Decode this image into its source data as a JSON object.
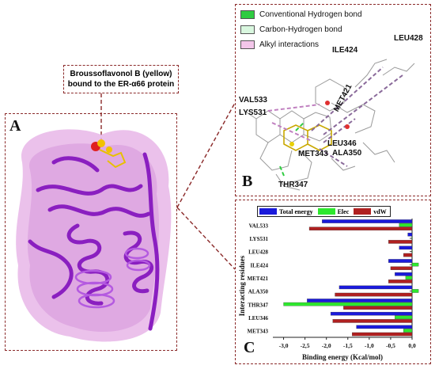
{
  "callout": {
    "line1": "Broussoflavonol B (yellow)",
    "line2": "bound to the ER-α66 protein"
  },
  "panels": {
    "a": "A",
    "b": "B",
    "c": "C"
  },
  "panel_b": {
    "legend": [
      {
        "label": "Conventional Hydrogen bond",
        "color": "#2ecc40"
      },
      {
        "label": "Carbon-Hydrogen bond",
        "color": "#d9f7df"
      },
      {
        "label": "Alkyl interactions",
        "color": "#f3c6ea"
      }
    ],
    "residues": [
      "LEU428",
      "ILE424",
      "VAL533",
      "MET421",
      "LYS531",
      "LEU346",
      "ALA350",
      "MET343",
      "THR347"
    ]
  },
  "chart_data": {
    "type": "bar",
    "orientation": "horizontal",
    "categories": [
      "VAL533",
      "LYS531",
      "LEU428",
      "ILE424",
      "MET421",
      "ALA350",
      "THR347",
      "LEU346",
      "MET343"
    ],
    "series": [
      {
        "name": "Total energy",
        "color": "#1a1adb",
        "values": [
          -2.1,
          -0.1,
          -0.3,
          -0.55,
          -0.4,
          -1.7,
          -2.45,
          -1.9,
          -1.3
        ]
      },
      {
        "name": "Elec",
        "color": "#2ee82e",
        "values": [
          -0.3,
          0.0,
          0.0,
          0.15,
          -0.15,
          0.15,
          -3.0,
          -0.4,
          -0.2
        ]
      },
      {
        "name": "vdW",
        "color": "#b02020",
        "values": [
          -2.4,
          -0.55,
          -0.2,
          -0.5,
          -0.55,
          -1.8,
          -1.6,
          -1.85,
          -1.4
        ]
      }
    ],
    "xlabel": "Binding energy (Kcal/mol)",
    "ylabel": "Interacting residues",
    "xlim": [
      -3.25,
      0
    ],
    "xticks": [
      "-3,0",
      "-2,5",
      "-2,0",
      "-1,5",
      "-1,0",
      "-0,5",
      "0,0"
    ],
    "legend_position": "top",
    "grid": false
  }
}
